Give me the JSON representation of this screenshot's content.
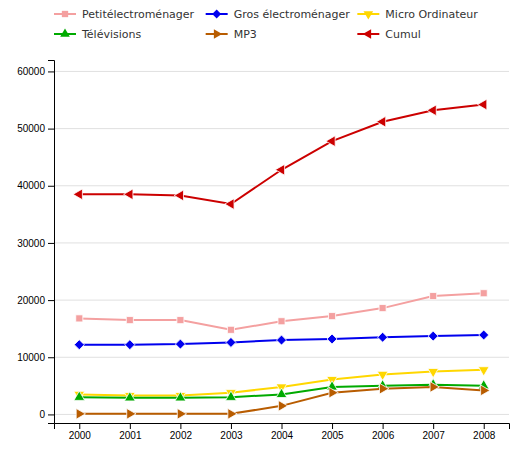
{
  "chart_data": {
    "type": "line",
    "x": [
      2000,
      2001,
      2002,
      2003,
      2004,
      2005,
      2006,
      2007,
      2008
    ],
    "xlim": [
      1999.5,
      2008.5
    ],
    "xticks": [
      2000,
      2001,
      2002,
      2003,
      2004,
      2005,
      2006,
      2007,
      2008
    ],
    "ylim": [
      -1500,
      62000
    ],
    "yticks": [
      0,
      10000,
      20000,
      30000,
      40000,
      50000,
      60000
    ],
    "grid": true,
    "legend": "top",
    "series": [
      {
        "name": "Petitélectroménager",
        "color": "#F4A0A0",
        "marker": "square",
        "values": [
          16800,
          16500,
          16500,
          14800,
          16300,
          17200,
          18600,
          20700,
          21200
        ]
      },
      {
        "name": "Gros électroménager",
        "color": "#0000EE",
        "marker": "diamond",
        "values": [
          12200,
          12200,
          12300,
          12600,
          13000,
          13200,
          13500,
          13700,
          13900
        ]
      },
      {
        "name": "Micro Ordinateur",
        "color": "#FFD700",
        "marker": "triangle-down",
        "values": [
          3500,
          3300,
          3300,
          3800,
          4800,
          6100,
          7000,
          7500,
          7800
        ]
      },
      {
        "name": "Télévisions",
        "color": "#00AA00",
        "marker": "triangle-up",
        "values": [
          3000,
          2900,
          2900,
          3000,
          3500,
          4800,
          5000,
          5200,
          5000
        ]
      },
      {
        "name": "MP3",
        "color": "#B85C00",
        "marker": "triangle-right",
        "values": [
          100,
          100,
          100,
          100,
          1500,
          3800,
          4500,
          4800,
          4200
        ]
      },
      {
        "name": "Cumul",
        "color": "#CC0000",
        "marker": "triangle-left",
        "values": [
          38500,
          38500,
          38300,
          36800,
          42800,
          47800,
          51200,
          53200,
          54200
        ]
      }
    ]
  }
}
